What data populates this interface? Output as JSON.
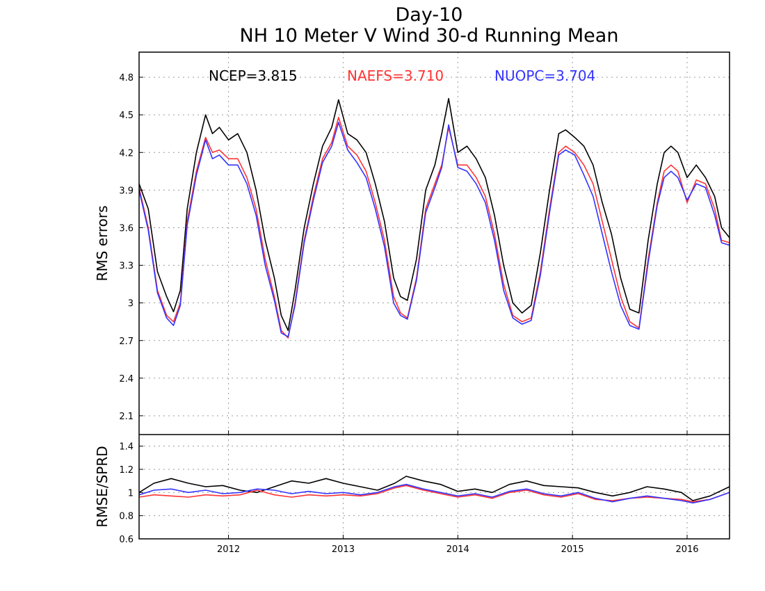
{
  "chart_data": [
    {
      "type": "line",
      "panel": "top",
      "title": "Day-10",
      "subtitle": "NH 10 Meter V Wind 30-d Running Mean",
      "ylabel": "RMS errors",
      "xlabel": "",
      "ylim": [
        1.95,
        5.0
      ],
      "yticks": [
        2.1,
        2.4,
        2.7,
        3.0,
        3.3,
        3.6,
        3.9,
        4.2,
        4.5,
        4.8
      ],
      "ytick_labels": [
        "2.1",
        "2.4",
        "2.7",
        "3",
        "3.3",
        "3.6",
        "3.9",
        "4.2",
        "4.5",
        "4.8"
      ],
      "xlim": [
        2011.22,
        2016.37
      ],
      "xticks": [
        2012,
        2013,
        2014,
        2015,
        2016
      ],
      "xtick_labels": [
        "2012",
        "2013",
        "2014",
        "2015",
        "2016"
      ],
      "grid": true,
      "legend": [
        {
          "label": "NCEP=3.815",
          "color": "#000000"
        },
        {
          "label": "NAEFS=3.710",
          "color": "#ff3333"
        },
        {
          "label": "NUOPC=3.704",
          "color": "#3333ff"
        }
      ],
      "series": [
        {
          "name": "NCEP",
          "color": "#000000",
          "x": [
            2011.22,
            2011.3,
            2011.38,
            2011.46,
            2011.52,
            2011.58,
            2011.64,
            2011.72,
            2011.8,
            2011.86,
            2011.92,
            2012.0,
            2012.08,
            2012.16,
            2012.24,
            2012.32,
            2012.4,
            2012.46,
            2012.52,
            2012.58,
            2012.66,
            2012.74,
            2012.82,
            2012.9,
            2012.96,
            2013.04,
            2013.12,
            2013.2,
            2013.28,
            2013.36,
            2013.44,
            2013.5,
            2013.56,
            2013.64,
            2013.72,
            2013.8,
            2013.86,
            2013.92,
            2014.0,
            2014.08,
            2014.16,
            2014.24,
            2014.32,
            2014.4,
            2014.48,
            2014.56,
            2014.64,
            2014.72,
            2014.8,
            2014.88,
            2014.94,
            2015.02,
            2015.1,
            2015.18,
            2015.26,
            2015.34,
            2015.42,
            2015.5,
            2015.58,
            2015.66,
            2015.74,
            2015.8,
            2015.86,
            2015.92,
            2016.0,
            2016.08,
            2016.16,
            2016.24,
            2016.3,
            2016.37
          ],
          "y": [
            3.95,
            3.75,
            3.25,
            3.05,
            2.93,
            3.1,
            3.75,
            4.2,
            4.5,
            4.35,
            4.4,
            4.3,
            4.35,
            4.2,
            3.9,
            3.5,
            3.2,
            2.9,
            2.78,
            3.1,
            3.6,
            3.95,
            4.25,
            4.4,
            4.62,
            4.35,
            4.3,
            4.2,
            3.95,
            3.65,
            3.2,
            3.05,
            3.02,
            3.35,
            3.9,
            4.1,
            4.35,
            4.63,
            4.2,
            4.25,
            4.15,
            4.0,
            3.7,
            3.3,
            3.0,
            2.92,
            2.98,
            3.4,
            3.9,
            4.35,
            4.38,
            4.32,
            4.25,
            4.1,
            3.8,
            3.55,
            3.2,
            2.95,
            2.92,
            3.5,
            3.95,
            4.2,
            4.25,
            4.2,
            4.0,
            4.1,
            4.0,
            3.85,
            3.6,
            3.52
          ]
        },
        {
          "name": "NAEFS",
          "color": "#ff3333",
          "x": [
            2011.22,
            2011.3,
            2011.38,
            2011.46,
            2011.52,
            2011.58,
            2011.64,
            2011.72,
            2011.8,
            2011.86,
            2011.92,
            2012.0,
            2012.08,
            2012.16,
            2012.24,
            2012.32,
            2012.4,
            2012.46,
            2012.52,
            2012.58,
            2012.66,
            2012.74,
            2012.82,
            2012.9,
            2012.96,
            2013.04,
            2013.12,
            2013.2,
            2013.28,
            2013.36,
            2013.44,
            2013.5,
            2013.56,
            2013.64,
            2013.72,
            2013.8,
            2013.86,
            2013.92,
            2014.0,
            2014.08,
            2014.16,
            2014.24,
            2014.32,
            2014.4,
            2014.48,
            2014.56,
            2014.64,
            2014.72,
            2014.8,
            2014.88,
            2014.94,
            2015.02,
            2015.1,
            2015.18,
            2015.26,
            2015.34,
            2015.42,
            2015.5,
            2015.58,
            2015.66,
            2015.74,
            2015.8,
            2015.86,
            2015.92,
            2016.0,
            2016.08,
            2016.16,
            2016.24,
            2016.3,
            2016.37
          ],
          "y": [
            3.92,
            3.6,
            3.1,
            2.9,
            2.85,
            3.0,
            3.65,
            4.05,
            4.32,
            4.2,
            4.22,
            4.15,
            4.15,
            4.0,
            3.75,
            3.35,
            3.05,
            2.78,
            2.72,
            3.0,
            3.5,
            3.85,
            4.15,
            4.28,
            4.48,
            4.25,
            4.18,
            4.05,
            3.8,
            3.5,
            3.05,
            2.92,
            2.88,
            3.2,
            3.75,
            3.95,
            4.1,
            4.4,
            4.1,
            4.1,
            4.0,
            3.85,
            3.55,
            3.15,
            2.9,
            2.85,
            2.88,
            3.25,
            3.75,
            4.2,
            4.25,
            4.2,
            4.1,
            3.95,
            3.65,
            3.35,
            3.05,
            2.85,
            2.8,
            3.35,
            3.8,
            4.05,
            4.1,
            4.05,
            3.8,
            3.98,
            3.95,
            3.75,
            3.5,
            3.48
          ]
        },
        {
          "name": "NUOPC",
          "color": "#3333ff",
          "x": [
            2011.22,
            2011.3,
            2011.38,
            2011.46,
            2011.52,
            2011.58,
            2011.64,
            2011.72,
            2011.8,
            2011.86,
            2011.92,
            2012.0,
            2012.08,
            2012.16,
            2012.24,
            2012.32,
            2012.4,
            2012.46,
            2012.52,
            2012.58,
            2012.66,
            2012.74,
            2012.82,
            2012.9,
            2012.96,
            2013.04,
            2013.12,
            2013.2,
            2013.28,
            2013.36,
            2013.44,
            2013.5,
            2013.56,
            2013.64,
            2013.72,
            2013.8,
            2013.86,
            2013.92,
            2014.0,
            2014.08,
            2014.16,
            2014.24,
            2014.32,
            2014.4,
            2014.48,
            2014.56,
            2014.64,
            2014.72,
            2014.8,
            2014.88,
            2014.94,
            2015.02,
            2015.1,
            2015.18,
            2015.26,
            2015.34,
            2015.42,
            2015.5,
            2015.58,
            2015.66,
            2015.74,
            2015.8,
            2015.86,
            2015.92,
            2016.0,
            2016.08,
            2016.16,
            2016.24,
            2016.3,
            2016.37
          ],
          "y": [
            3.9,
            3.58,
            3.08,
            2.88,
            2.82,
            2.98,
            3.62,
            4.02,
            4.3,
            4.15,
            4.18,
            4.1,
            4.1,
            3.95,
            3.7,
            3.3,
            3.02,
            2.76,
            2.73,
            2.98,
            3.48,
            3.82,
            4.12,
            4.25,
            4.44,
            4.22,
            4.12,
            4.0,
            3.75,
            3.45,
            3.0,
            2.9,
            2.87,
            3.18,
            3.72,
            3.92,
            4.08,
            4.42,
            4.08,
            4.05,
            3.95,
            3.8,
            3.5,
            3.1,
            2.88,
            2.83,
            2.86,
            3.22,
            3.72,
            4.18,
            4.22,
            4.18,
            4.02,
            3.85,
            3.55,
            3.25,
            2.98,
            2.82,
            2.79,
            3.32,
            3.78,
            4.0,
            4.05,
            4.0,
            3.82,
            3.95,
            3.92,
            3.7,
            3.48,
            3.46
          ]
        }
      ]
    },
    {
      "type": "line",
      "panel": "bottom",
      "title": "",
      "ylabel": "RMSE/SPRD",
      "xlabel": "",
      "ylim": [
        0.6,
        1.5
      ],
      "yticks": [
        0.6,
        0.8,
        1.0,
        1.2,
        1.4
      ],
      "ytick_labels": [
        "0.6",
        "0.8",
        "1",
        "1.2",
        "1.4"
      ],
      "xlim": [
        2011.22,
        2016.37
      ],
      "xticks": [
        2012,
        2013,
        2014,
        2015,
        2016
      ],
      "xtick_labels": [
        "2012",
        "2013",
        "2014",
        "2015",
        "2016"
      ],
      "grid": true,
      "series": [
        {
          "name": "NCEP",
          "color": "#000000",
          "x": [
            2011.22,
            2011.35,
            2011.5,
            2011.65,
            2011.8,
            2011.95,
            2012.1,
            2012.25,
            2012.4,
            2012.55,
            2012.7,
            2012.85,
            2013.0,
            2013.15,
            2013.3,
            2013.45,
            2013.55,
            2013.7,
            2013.85,
            2014.0,
            2014.15,
            2014.3,
            2014.45,
            2014.6,
            2014.75,
            2014.9,
            2015.05,
            2015.2,
            2015.35,
            2015.5,
            2015.65,
            2015.8,
            2015.95,
            2016.05,
            2016.2,
            2016.37
          ],
          "y": [
            1.0,
            1.08,
            1.12,
            1.08,
            1.05,
            1.06,
            1.02,
            1.0,
            1.05,
            1.1,
            1.08,
            1.12,
            1.08,
            1.05,
            1.02,
            1.08,
            1.14,
            1.1,
            1.07,
            1.01,
            1.03,
            1.0,
            1.07,
            1.1,
            1.06,
            1.05,
            1.04,
            1.0,
            0.97,
            1.0,
            1.05,
            1.03,
            1.0,
            0.93,
            0.97,
            1.05
          ]
        },
        {
          "name": "NAEFS",
          "color": "#ff3333",
          "x": [
            2011.22,
            2011.35,
            2011.5,
            2011.65,
            2011.8,
            2011.95,
            2012.1,
            2012.25,
            2012.4,
            2012.55,
            2012.7,
            2012.85,
            2013.0,
            2013.15,
            2013.3,
            2013.45,
            2013.55,
            2013.7,
            2013.85,
            2014.0,
            2014.15,
            2014.3,
            2014.45,
            2014.6,
            2014.75,
            2014.9,
            2015.05,
            2015.2,
            2015.35,
            2015.5,
            2015.65,
            2015.8,
            2015.95,
            2016.05,
            2016.2,
            2016.37
          ],
          "y": [
            0.96,
            0.98,
            0.97,
            0.96,
            0.98,
            0.97,
            0.98,
            1.02,
            0.98,
            0.96,
            0.98,
            0.97,
            0.98,
            0.97,
            0.99,
            1.04,
            1.06,
            1.02,
            0.99,
            0.96,
            0.98,
            0.95,
            1.0,
            1.02,
            0.98,
            0.96,
            0.99,
            0.94,
            0.93,
            0.95,
            0.96,
            0.95,
            0.94,
            0.92,
            0.94,
            1.0
          ]
        },
        {
          "name": "NUOPC",
          "color": "#3333ff",
          "x": [
            2011.22,
            2011.35,
            2011.5,
            2011.65,
            2011.8,
            2011.95,
            2012.1,
            2012.25,
            2012.4,
            2012.55,
            2012.7,
            2012.85,
            2013.0,
            2013.15,
            2013.3,
            2013.45,
            2013.55,
            2013.7,
            2013.85,
            2014.0,
            2014.15,
            2014.3,
            2014.45,
            2014.6,
            2014.75,
            2014.9,
            2015.05,
            2015.2,
            2015.35,
            2015.5,
            2015.65,
            2015.8,
            2015.95,
            2016.05,
            2016.2,
            2016.37
          ],
          "y": [
            0.98,
            1.02,
            1.03,
            1.0,
            1.02,
            0.99,
            1.0,
            1.03,
            1.02,
            0.99,
            1.01,
            0.99,
            1.0,
            0.98,
            1.0,
            1.05,
            1.07,
            1.03,
            1.0,
            0.97,
            0.99,
            0.96,
            1.01,
            1.03,
            0.99,
            0.97,
            1.0,
            0.95,
            0.92,
            0.95,
            0.97,
            0.95,
            0.93,
            0.91,
            0.94,
            1.0
          ]
        }
      ]
    }
  ]
}
